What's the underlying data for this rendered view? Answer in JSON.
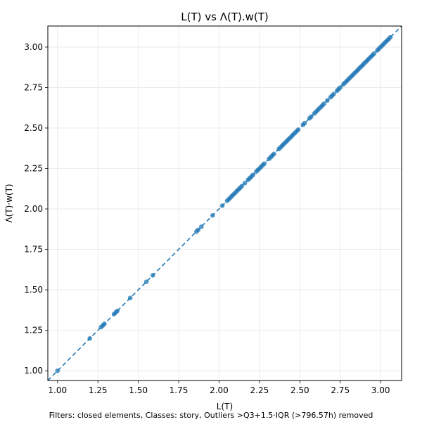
{
  "chart_data": {
    "type": "scatter",
    "title": "L(T) vs Λ(T).w(T)",
    "xlabel": "L(T)",
    "ylabel": "Λ(T)·w(T)",
    "caption": "Filters: closed elements, Classes: story, Outliers >Q3+1.5·IQR (>796.57h) removed",
    "xlim": [
      0.94,
      3.13
    ],
    "ylim": [
      0.94,
      3.13
    ],
    "xticks": [
      "1.00",
      "1.25",
      "1.50",
      "1.75",
      "2.00",
      "2.25",
      "2.50",
      "2.75",
      "3.00"
    ],
    "yticks": [
      "1.00",
      "1.25",
      "1.50",
      "1.75",
      "2.00",
      "2.25",
      "2.50",
      "2.75",
      "3.00"
    ],
    "grid": true,
    "reference_line": "y = x (dashed)",
    "colors": {
      "points": "#1f77b4",
      "reference_line": "#1f77b4",
      "grid": "#e6e6e6"
    },
    "points": [
      [
        1.0,
        1.0
      ],
      [
        1.2,
        1.2
      ],
      [
        1.27,
        1.27
      ],
      [
        1.28,
        1.28
      ],
      [
        1.29,
        1.29
      ],
      [
        1.35,
        1.35
      ],
      [
        1.36,
        1.36
      ],
      [
        1.37,
        1.37
      ],
      [
        1.45,
        1.45
      ],
      [
        1.55,
        1.55
      ],
      [
        1.59,
        1.59
      ],
      [
        1.86,
        1.86
      ],
      [
        1.87,
        1.87
      ],
      [
        1.89,
        1.89
      ],
      [
        1.96,
        1.96
      ],
      [
        2.02,
        2.02
      ],
      [
        2.05,
        2.05
      ],
      [
        2.06,
        2.06
      ],
      [
        2.07,
        2.07
      ],
      [
        2.08,
        2.08
      ],
      [
        2.09,
        2.09
      ],
      [
        2.1,
        2.1
      ],
      [
        2.11,
        2.11
      ],
      [
        2.12,
        2.12
      ],
      [
        2.13,
        2.13
      ],
      [
        2.14,
        2.14
      ],
      [
        2.16,
        2.16
      ],
      [
        2.18,
        2.18
      ],
      [
        2.19,
        2.19
      ],
      [
        2.2,
        2.2
      ],
      [
        2.21,
        2.21
      ],
      [
        2.23,
        2.23
      ],
      [
        2.24,
        2.24
      ],
      [
        2.25,
        2.25
      ],
      [
        2.26,
        2.26
      ],
      [
        2.27,
        2.27
      ],
      [
        2.28,
        2.28
      ],
      [
        2.31,
        2.31
      ],
      [
        2.32,
        2.32
      ],
      [
        2.33,
        2.33
      ],
      [
        2.34,
        2.34
      ],
      [
        2.37,
        2.37
      ],
      [
        2.38,
        2.38
      ],
      [
        2.39,
        2.39
      ],
      [
        2.4,
        2.4
      ],
      [
        2.41,
        2.41
      ],
      [
        2.42,
        2.42
      ],
      [
        2.43,
        2.43
      ],
      [
        2.44,
        2.44
      ],
      [
        2.45,
        2.45
      ],
      [
        2.46,
        2.46
      ],
      [
        2.47,
        2.47
      ],
      [
        2.48,
        2.48
      ],
      [
        2.49,
        2.49
      ],
      [
        2.52,
        2.52
      ],
      [
        2.53,
        2.53
      ],
      [
        2.56,
        2.56
      ],
      [
        2.57,
        2.57
      ],
      [
        2.59,
        2.59
      ],
      [
        2.6,
        2.6
      ],
      [
        2.61,
        2.61
      ],
      [
        2.62,
        2.62
      ],
      [
        2.63,
        2.63
      ],
      [
        2.64,
        2.64
      ],
      [
        2.65,
        2.65
      ],
      [
        2.67,
        2.67
      ],
      [
        2.69,
        2.69
      ],
      [
        2.7,
        2.7
      ],
      [
        2.71,
        2.71
      ],
      [
        2.73,
        2.73
      ],
      [
        2.74,
        2.74
      ],
      [
        2.75,
        2.75
      ],
      [
        2.77,
        2.77
      ],
      [
        2.78,
        2.78
      ],
      [
        2.79,
        2.79
      ],
      [
        2.8,
        2.8
      ],
      [
        2.81,
        2.81
      ],
      [
        2.82,
        2.82
      ],
      [
        2.83,
        2.83
      ],
      [
        2.84,
        2.84
      ],
      [
        2.85,
        2.85
      ],
      [
        2.86,
        2.86
      ],
      [
        2.87,
        2.87
      ],
      [
        2.88,
        2.88
      ],
      [
        2.89,
        2.89
      ],
      [
        2.9,
        2.9
      ],
      [
        2.91,
        2.91
      ],
      [
        2.92,
        2.92
      ],
      [
        2.93,
        2.93
      ],
      [
        2.94,
        2.94
      ],
      [
        2.95,
        2.95
      ],
      [
        2.96,
        2.96
      ],
      [
        2.98,
        2.98
      ],
      [
        2.99,
        2.99
      ],
      [
        3.0,
        3.0
      ],
      [
        3.01,
        3.01
      ],
      [
        3.02,
        3.02
      ],
      [
        3.03,
        3.03
      ],
      [
        3.04,
        3.04
      ],
      [
        3.05,
        3.05
      ],
      [
        3.06,
        3.06
      ]
    ]
  }
}
